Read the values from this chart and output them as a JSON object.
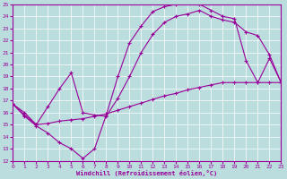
{
  "xlabel": "Windchill (Refroidissement éolien,°C)",
  "xlim": [
    0,
    23
  ],
  "ylim": [
    12,
    25
  ],
  "xticks": [
    0,
    1,
    2,
    3,
    4,
    5,
    6,
    7,
    8,
    9,
    10,
    11,
    12,
    13,
    14,
    15,
    16,
    17,
    18,
    19,
    20,
    21,
    22,
    23
  ],
  "yticks": [
    12,
    13,
    14,
    15,
    16,
    17,
    18,
    19,
    20,
    21,
    22,
    23,
    24,
    25
  ],
  "line_color": "#990099",
  "background_color": "#bbdddd",
  "line1_x": [
    0,
    1,
    2,
    3,
    4,
    5,
    6,
    7,
    8,
    9,
    10,
    11,
    12,
    13,
    14,
    15,
    16,
    17,
    18,
    19,
    20,
    21,
    22,
    23
  ],
  "line1_y": [
    16.7,
    15.7,
    14.9,
    14.3,
    13.5,
    13.0,
    12.2,
    13.0,
    15.8,
    19.0,
    21.8,
    23.2,
    24.4,
    24.8,
    25.0,
    25.3,
    25.0,
    24.5,
    24.0,
    23.8,
    20.3,
    18.5,
    20.5,
    18.5
  ],
  "line2_x": [
    0,
    1,
    2,
    3,
    4,
    5,
    6,
    7,
    8,
    9,
    10,
    11,
    12,
    13,
    14,
    15,
    16,
    17,
    18,
    19,
    20,
    21,
    22,
    23
  ],
  "line2_y": [
    16.7,
    15.8,
    15.0,
    15.1,
    15.3,
    15.4,
    15.5,
    15.7,
    15.9,
    16.2,
    16.5,
    16.8,
    17.1,
    17.4,
    17.6,
    17.9,
    18.1,
    18.3,
    18.5,
    18.5,
    18.5,
    18.5,
    18.5,
    18.5
  ],
  "line3_x": [
    0,
    1,
    2,
    3,
    4,
    5,
    6,
    7,
    8,
    9,
    10,
    11,
    12,
    13,
    14,
    15,
    16,
    17,
    18,
    19,
    20,
    21,
    22,
    23
  ],
  "line3_y": [
    16.7,
    16.0,
    15.0,
    16.5,
    18.0,
    19.3,
    16.0,
    15.8,
    15.7,
    17.2,
    19.0,
    21.0,
    22.5,
    23.5,
    24.0,
    24.2,
    24.5,
    24.0,
    23.7,
    23.5,
    22.7,
    22.4,
    20.8,
    18.5
  ]
}
